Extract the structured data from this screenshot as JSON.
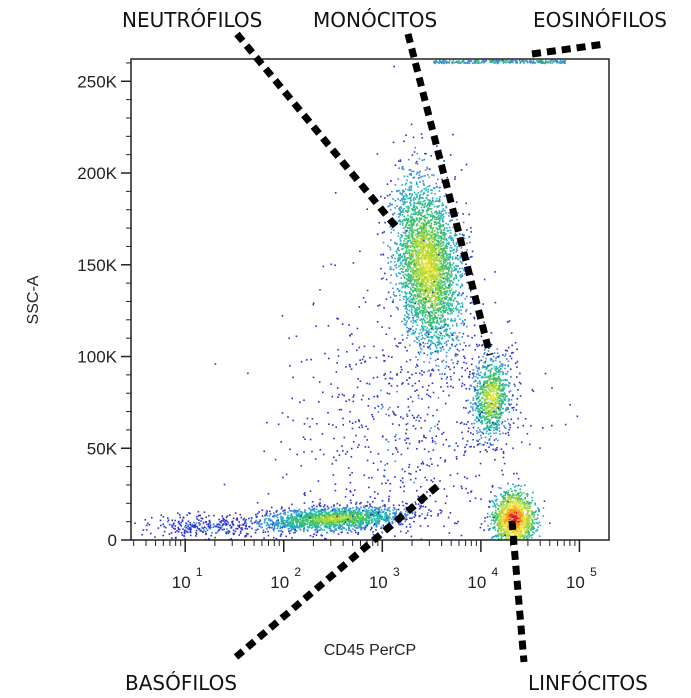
{
  "chart_data": {
    "type": "scatter",
    "density_coloring": true,
    "xlabel": "CD45 PerCP",
    "ylabel": "SSC-A",
    "x_scale": "log (biexponential)",
    "x_ticks": [
      {
        "base": "10",
        "exp": "1"
      },
      {
        "base": "10",
        "exp": "2"
      },
      {
        "base": "10",
        "exp": "3"
      },
      {
        "base": "10",
        "exp": "4"
      },
      {
        "base": "10",
        "exp": "5"
      }
    ],
    "y_ticks": [
      "0",
      "50K",
      "100K",
      "150K",
      "200K",
      "250K"
    ],
    "y_tick_values": [
      0,
      50000,
      100000,
      150000,
      200000,
      250000
    ],
    "ylim": [
      0,
      262144
    ],
    "xlim_decades": [
      0.45,
      5.3
    ],
    "populations": [
      {
        "label": "NEUTRÓFILOS",
        "cd45_log": 3.5,
        "ssc": 150000
      },
      {
        "label": "MONÓCITOS",
        "cd45_log": 4.1,
        "ssc": 78000
      },
      {
        "label": "EOSINÓFILOS",
        "cd45_log": 4.2,
        "ssc": 261000
      },
      {
        "label": "BASÓFILOS",
        "cd45_log": 2.5,
        "ssc": 10000
      },
      {
        "label": "LINFÓCITOS",
        "cd45_log": 4.35,
        "ssc": 12000
      }
    ],
    "density_colors": [
      "#2b2ed1",
      "#3f86e0",
      "#1fb3b5",
      "#3cc06a",
      "#a8d83a",
      "#f0e43a",
      "#f59a2a",
      "#e8231c"
    ]
  }
}
